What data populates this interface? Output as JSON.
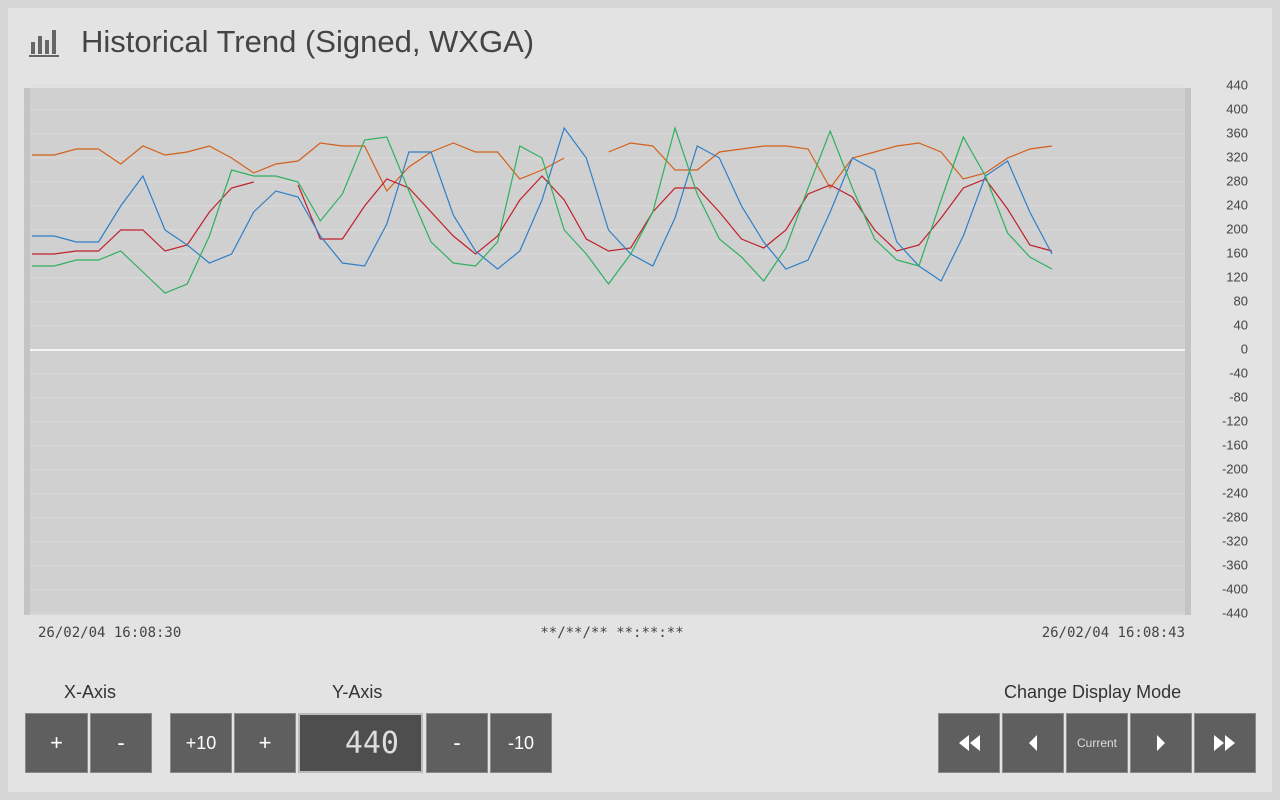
{
  "header": {
    "title": "Historical Trend (Signed, WXGA)"
  },
  "chart_data": {
    "type": "line",
    "categories": [
      "26/02/04 16:08:30",
      null,
      null,
      null,
      null,
      null,
      null,
      null,
      null,
      null,
      null,
      null,
      null,
      null,
      null,
      null,
      null,
      null,
      null,
      null,
      null,
      null,
      null,
      null,
      null,
      null,
      null,
      null,
      null,
      null,
      null,
      null,
      null,
      null,
      null,
      null,
      null,
      null,
      null,
      null,
      null,
      null,
      null,
      null,
      null,
      null,
      null,
      null,
      null,
      null,
      null,
      null,
      "26/02/04 16:08:43"
    ],
    "cursor_time": "**/**/** **:**:**",
    "series": [
      {
        "color": "#d4601c",
        "values": [
          325,
          325,
          335,
          335,
          310,
          340,
          325,
          330,
          340,
          320,
          295,
          310,
          315,
          345,
          340,
          340,
          265,
          305,
          330,
          345,
          330,
          330,
          285,
          300,
          320,
          null,
          330,
          345,
          340,
          300,
          300,
          330,
          335,
          340,
          340,
          335,
          270,
          320,
          330,
          340,
          345,
          330,
          285,
          295,
          320,
          335,
          340,
          null,
          null,
          null,
          null,
          null,
          null
        ]
      },
      {
        "color": "#c0202a",
        "values": [
          160,
          160,
          165,
          165,
          200,
          200,
          165,
          175,
          230,
          270,
          280,
          null,
          275,
          185,
          185,
          240,
          285,
          270,
          230,
          190,
          160,
          190,
          250,
          290,
          250,
          185,
          165,
          170,
          230,
          270,
          270,
          230,
          185,
          170,
          200,
          260,
          275,
          255,
          200,
          165,
          175,
          220,
          270,
          285,
          235,
          175,
          165,
          null,
          null,
          null,
          null,
          null,
          null
        ]
      },
      {
        "color": "#2f7fc8",
        "values": [
          190,
          190,
          180,
          180,
          240,
          290,
          200,
          175,
          145,
          160,
          230,
          265,
          255,
          190,
          145,
          140,
          210,
          330,
          330,
          225,
          165,
          135,
          165,
          250,
          370,
          320,
          200,
          160,
          140,
          220,
          340,
          320,
          240,
          180,
          135,
          150,
          230,
          320,
          300,
          180,
          140,
          115,
          190,
          290,
          315,
          230,
          160,
          null,
          null,
          null,
          null,
          null,
          null
        ]
      },
      {
        "color": "#2fb060",
        "values": [
          140,
          140,
          150,
          150,
          165,
          130,
          95,
          110,
          190,
          300,
          290,
          290,
          280,
          215,
          260,
          350,
          355,
          265,
          180,
          145,
          140,
          180,
          340,
          320,
          200,
          160,
          110,
          160,
          230,
          370,
          260,
          185,
          155,
          115,
          170,
          270,
          365,
          270,
          185,
          150,
          140,
          250,
          355,
          290,
          195,
          155,
          135,
          null,
          null,
          null,
          null,
          null,
          null
        ]
      }
    ],
    "ylim": [
      -440,
      440
    ],
    "yticks": [
      440,
      400,
      360,
      320,
      280,
      240,
      200,
      160,
      120,
      80,
      40,
      0,
      -40,
      -80,
      -120,
      -160,
      -200,
      -240,
      -280,
      -320,
      -360,
      -400,
      -440
    ],
    "grid": true
  },
  "controls": {
    "x_axis": {
      "label": "X-Axis",
      "plus": "+",
      "minus": "-"
    },
    "y_axis": {
      "label": "Y-Axis",
      "plus10": "+10",
      "plus": "+",
      "display": "440",
      "minus": "-",
      "minus10": "-10"
    },
    "display_mode": {
      "label": "Change Display Mode",
      "current": "Current"
    }
  }
}
